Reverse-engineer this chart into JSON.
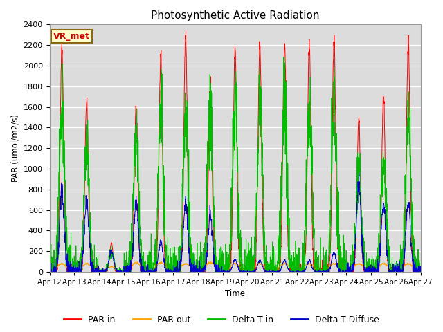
{
  "title": "Photosynthetic Active Radiation",
  "ylabel": "PAR (umol/m2/s)",
  "xlabel": "Time",
  "ylim": [
    0,
    2400
  ],
  "bg_color": "#dcdcdc",
  "legend_box_label": "VR_met",
  "legend_entries": [
    "PAR in",
    "PAR out",
    "Delta-T in",
    "Delta-T Diffuse"
  ],
  "line_colors": [
    "#ff0000",
    "#ffa500",
    "#00bb00",
    "#0000cc"
  ],
  "x_tick_labels": [
    "Apr 12",
    "Apr 13",
    "Apr 14",
    "Apr 15",
    "Apr 16",
    "Apr 17",
    "Apr 18",
    "Apr 19",
    "Apr 20",
    "Apr 21",
    "Apr 22",
    "Apr 23",
    "Apr 24",
    "Apr 25",
    "Apr 26",
    "Apr 27"
  ],
  "n_days": 15,
  "ppd": 144
}
